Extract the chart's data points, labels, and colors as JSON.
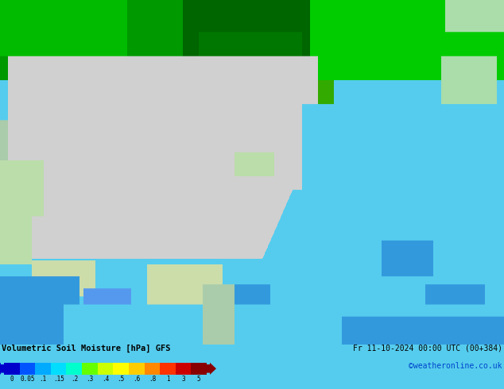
{
  "title": "Volumetric Soil Moisture [hPa] GFS",
  "datetime_text": "Fr 11-10-2024 00:00 UTC (00+384)",
  "credit_text": "©weatheronline.co.uk",
  "colorbar_labels": [
    "0",
    "0.05",
    ".1",
    ".15",
    ".2",
    ".3",
    ".4",
    ".5",
    ".6",
    ".8",
    "1",
    "3",
    "5"
  ],
  "colorbar_colors": [
    "#0000cd",
    "#0055ff",
    "#00aaff",
    "#00ddff",
    "#00ffcc",
    "#66ff00",
    "#ccff00",
    "#ffff00",
    "#ffcc00",
    "#ff8800",
    "#ff3300",
    "#cc0000",
    "#880000"
  ],
  "bg_color": "#55ccee",
  "land_gray": "#d0d0d0",
  "light_green": "#cceeaa",
  "dark_green": "#009900",
  "med_green": "#00cc00",
  "bright_green": "#44ee00",
  "dark_blue": "#0000bb",
  "fig_width": 6.34,
  "fig_height": 4.9,
  "dpi": 100
}
